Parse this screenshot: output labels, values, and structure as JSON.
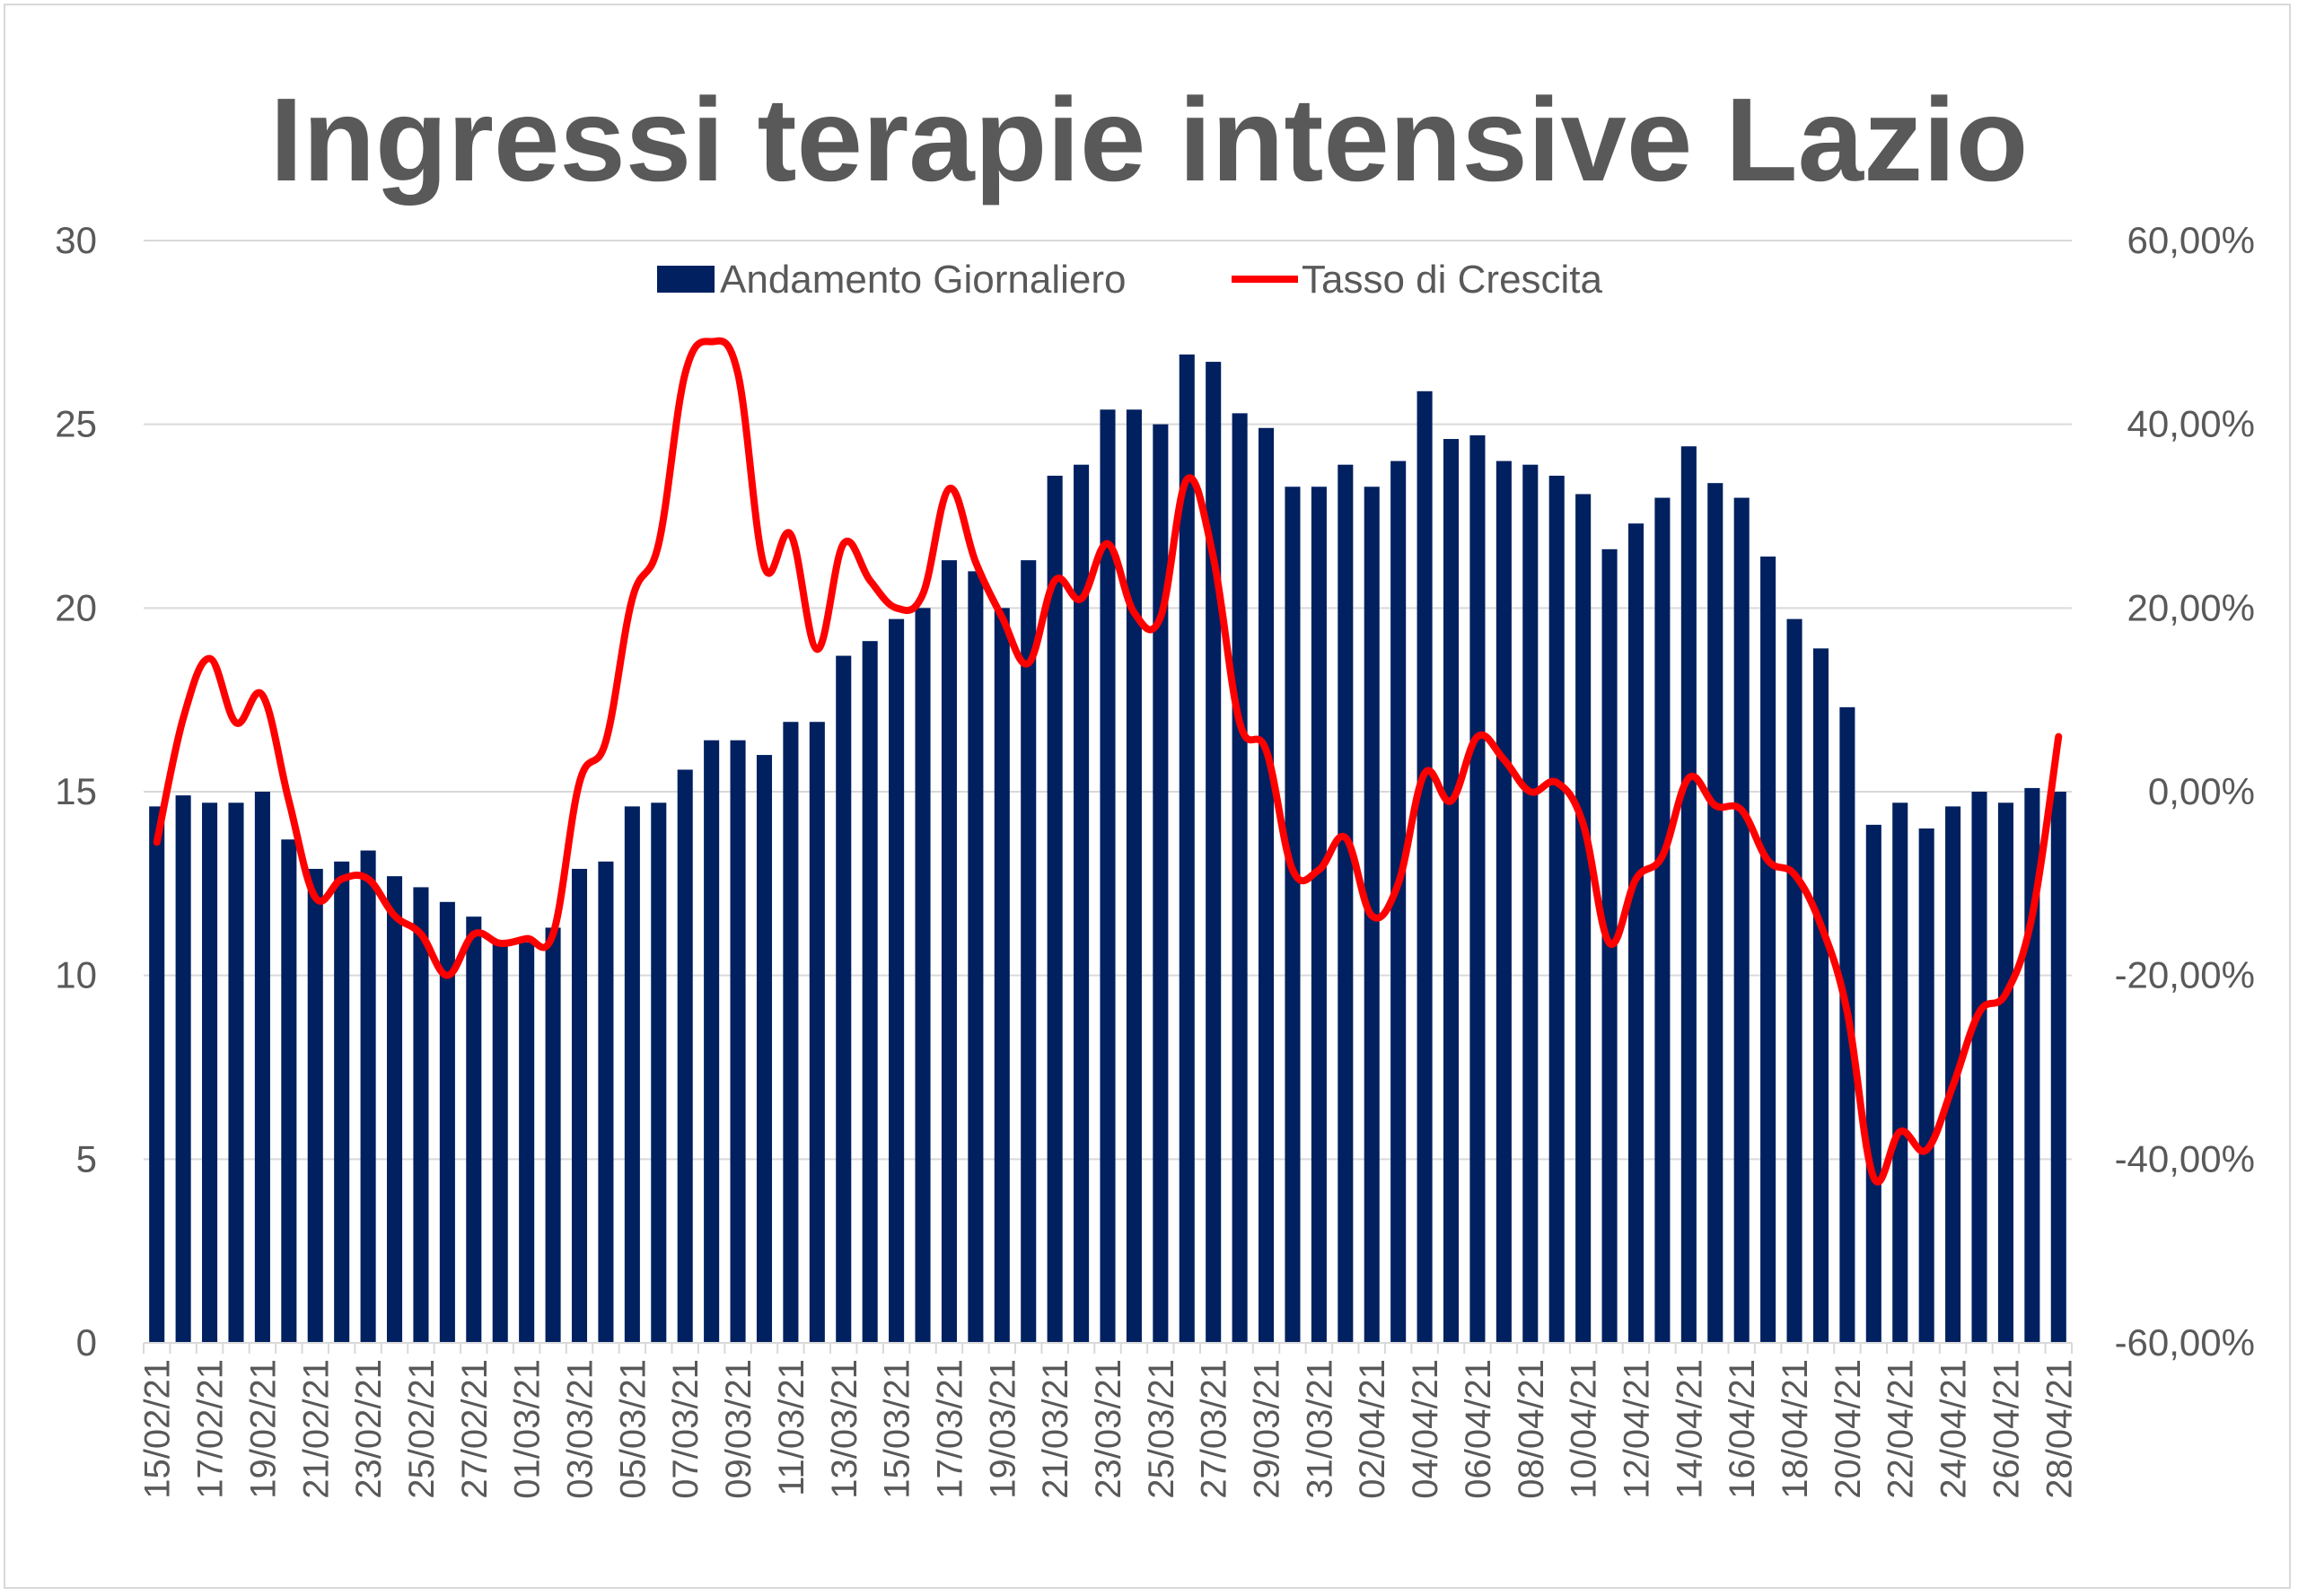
{
  "chart_data": {
    "type": "bar+line",
    "title": "Ingressi terapie intensive Lazio",
    "categories": [
      "15/02/21",
      "16/02/21",
      "17/02/21",
      "18/02/21",
      "19/02/21",
      "20/02/21",
      "21/02/21",
      "22/02/21",
      "23/02/21",
      "24/02/21",
      "25/02/21",
      "26/02/21",
      "27/02/21",
      "28/02/21",
      "01/03/21",
      "02/03/21",
      "03/03/21",
      "04/03/21",
      "05/03/21",
      "06/03/21",
      "07/03/21",
      "08/03/21",
      "09/03/21",
      "10/03/21",
      "11/03/21",
      "12/03/21",
      "13/03/21",
      "14/03/21",
      "15/03/21",
      "16/03/21",
      "17/03/21",
      "18/03/21",
      "19/03/21",
      "20/03/21",
      "21/03/21",
      "22/03/21",
      "23/03/21",
      "24/03/21",
      "25/03/21",
      "26/03/21",
      "27/03/21",
      "28/03/21",
      "29/03/21",
      "30/03/21",
      "31/03/21",
      "01/04/21",
      "02/04/21",
      "03/04/21",
      "04/04/21",
      "05/04/21",
      "06/04/21",
      "07/04/21",
      "08/04/21",
      "09/04/21",
      "10/04/21",
      "11/04/21",
      "12/04/21",
      "13/04/21",
      "14/04/21",
      "15/04/21",
      "16/04/21",
      "17/04/21",
      "18/04/21",
      "19/04/21",
      "20/04/21",
      "21/04/21",
      "22/04/21",
      "23/04/21",
      "24/04/21",
      "25/04/21",
      "26/04/21",
      "27/04/21",
      "28/04/21"
    ],
    "tick_labels": [
      "15/02/21",
      "17/02/21",
      "19/02/21",
      "21/02/21",
      "23/02/21",
      "25/02/21",
      "27/02/21",
      "01/03/21",
      "03/03/21",
      "05/03/21",
      "07/03/21",
      "09/03/21",
      "11/03/21",
      "13/03/21",
      "15/03/21",
      "17/03/21",
      "19/03/21",
      "21/03/21",
      "23/03/21",
      "25/03/21",
      "27/03/21",
      "29/03/21",
      "31/03/21",
      "02/04/21",
      "04/04/21",
      "06/04/21",
      "08/04/21",
      "10/04/21",
      "12/04/21",
      "14/04/21",
      "16/04/21",
      "18/04/21",
      "20/04/21",
      "22/04/21",
      "24/04/21",
      "26/04/21",
      "28/04/21"
    ],
    "series": [
      {
        "name": "Andamento Giornaliero",
        "axis": "left",
        "kind": "bar",
        "color": "#002060",
        "values": [
          14.6,
          14.9,
          14.7,
          14.7,
          15.0,
          13.7,
          12.9,
          13.1,
          13.4,
          12.7,
          12.4,
          12.0,
          11.6,
          10.9,
          10.9,
          11.3,
          12.9,
          13.1,
          14.6,
          14.7,
          15.6,
          16.4,
          16.4,
          16.0,
          16.9,
          16.9,
          18.7,
          19.1,
          19.7,
          20.0,
          21.3,
          21.0,
          20.0,
          21.3,
          23.6,
          23.9,
          25.4,
          25.4,
          25.0,
          26.9,
          26.7,
          25.3,
          24.9,
          23.3,
          23.3,
          23.9,
          23.3,
          24.0,
          25.9,
          24.6,
          24.7,
          24.0,
          23.9,
          23.6,
          23.1,
          21.6,
          22.3,
          23.0,
          24.4,
          23.4,
          23.0,
          21.4,
          19.7,
          18.9,
          17.3,
          14.1,
          14.7,
          14.0,
          14.6,
          15.0,
          14.7,
          15.1,
          15.0
        ]
      },
      {
        "name": "Tasso di Crescita",
        "axis": "right",
        "kind": "line",
        "color": "#ff0000",
        "values": [
          -5.5,
          8.0,
          14.5,
          7.5,
          10.5,
          -1.0,
          -11.5,
          -9.5,
          -9.5,
          -13.5,
          -15.5,
          -20.0,
          -15.5,
          -16.5,
          -16.0,
          -15.5,
          1.0,
          5.5,
          21.0,
          27.0,
          45.5,
          49.0,
          45.5,
          24.5,
          28.0,
          15.5,
          27.0,
          23.0,
          20.0,
          21.5,
          33.0,
          25.0,
          19.0,
          14.0,
          23.0,
          21.0,
          27.0,
          19.5,
          19.0,
          34.0,
          25.5,
          7.5,
          4.5,
          -8.5,
          -8.5,
          -5.0,
          -13.5,
          -10.0,
          2.0,
          -1.0,
          6.0,
          3.5,
          0.0,
          1.0,
          -3.5,
          -16.5,
          -9.5,
          -7.0,
          1.5,
          -1.5,
          -2.0,
          -7.5,
          -9.0,
          -14.5,
          -24.0,
          -42.0,
          -37.0,
          -39.0,
          -32.0,
          -24.0,
          -22.0,
          -13.5,
          6.0
        ]
      }
    ],
    "y_left": {
      "min": 0,
      "max": 30,
      "ticks": [
        "0",
        "5",
        "10",
        "15",
        "20",
        "25",
        "30"
      ]
    },
    "y_right": {
      "min": -60,
      "max": 60,
      "ticks": [
        "-60,00%",
        "-40,00%",
        "-20,00%",
        "0,00%",
        "20,00%",
        "40,00%",
        "60,00%"
      ]
    },
    "grid": true,
    "legend_position": "top-center",
    "colors": {
      "bars": "#002060",
      "line": "#ff0000",
      "grid": "#d9d9d9",
      "text": "#595959"
    }
  }
}
